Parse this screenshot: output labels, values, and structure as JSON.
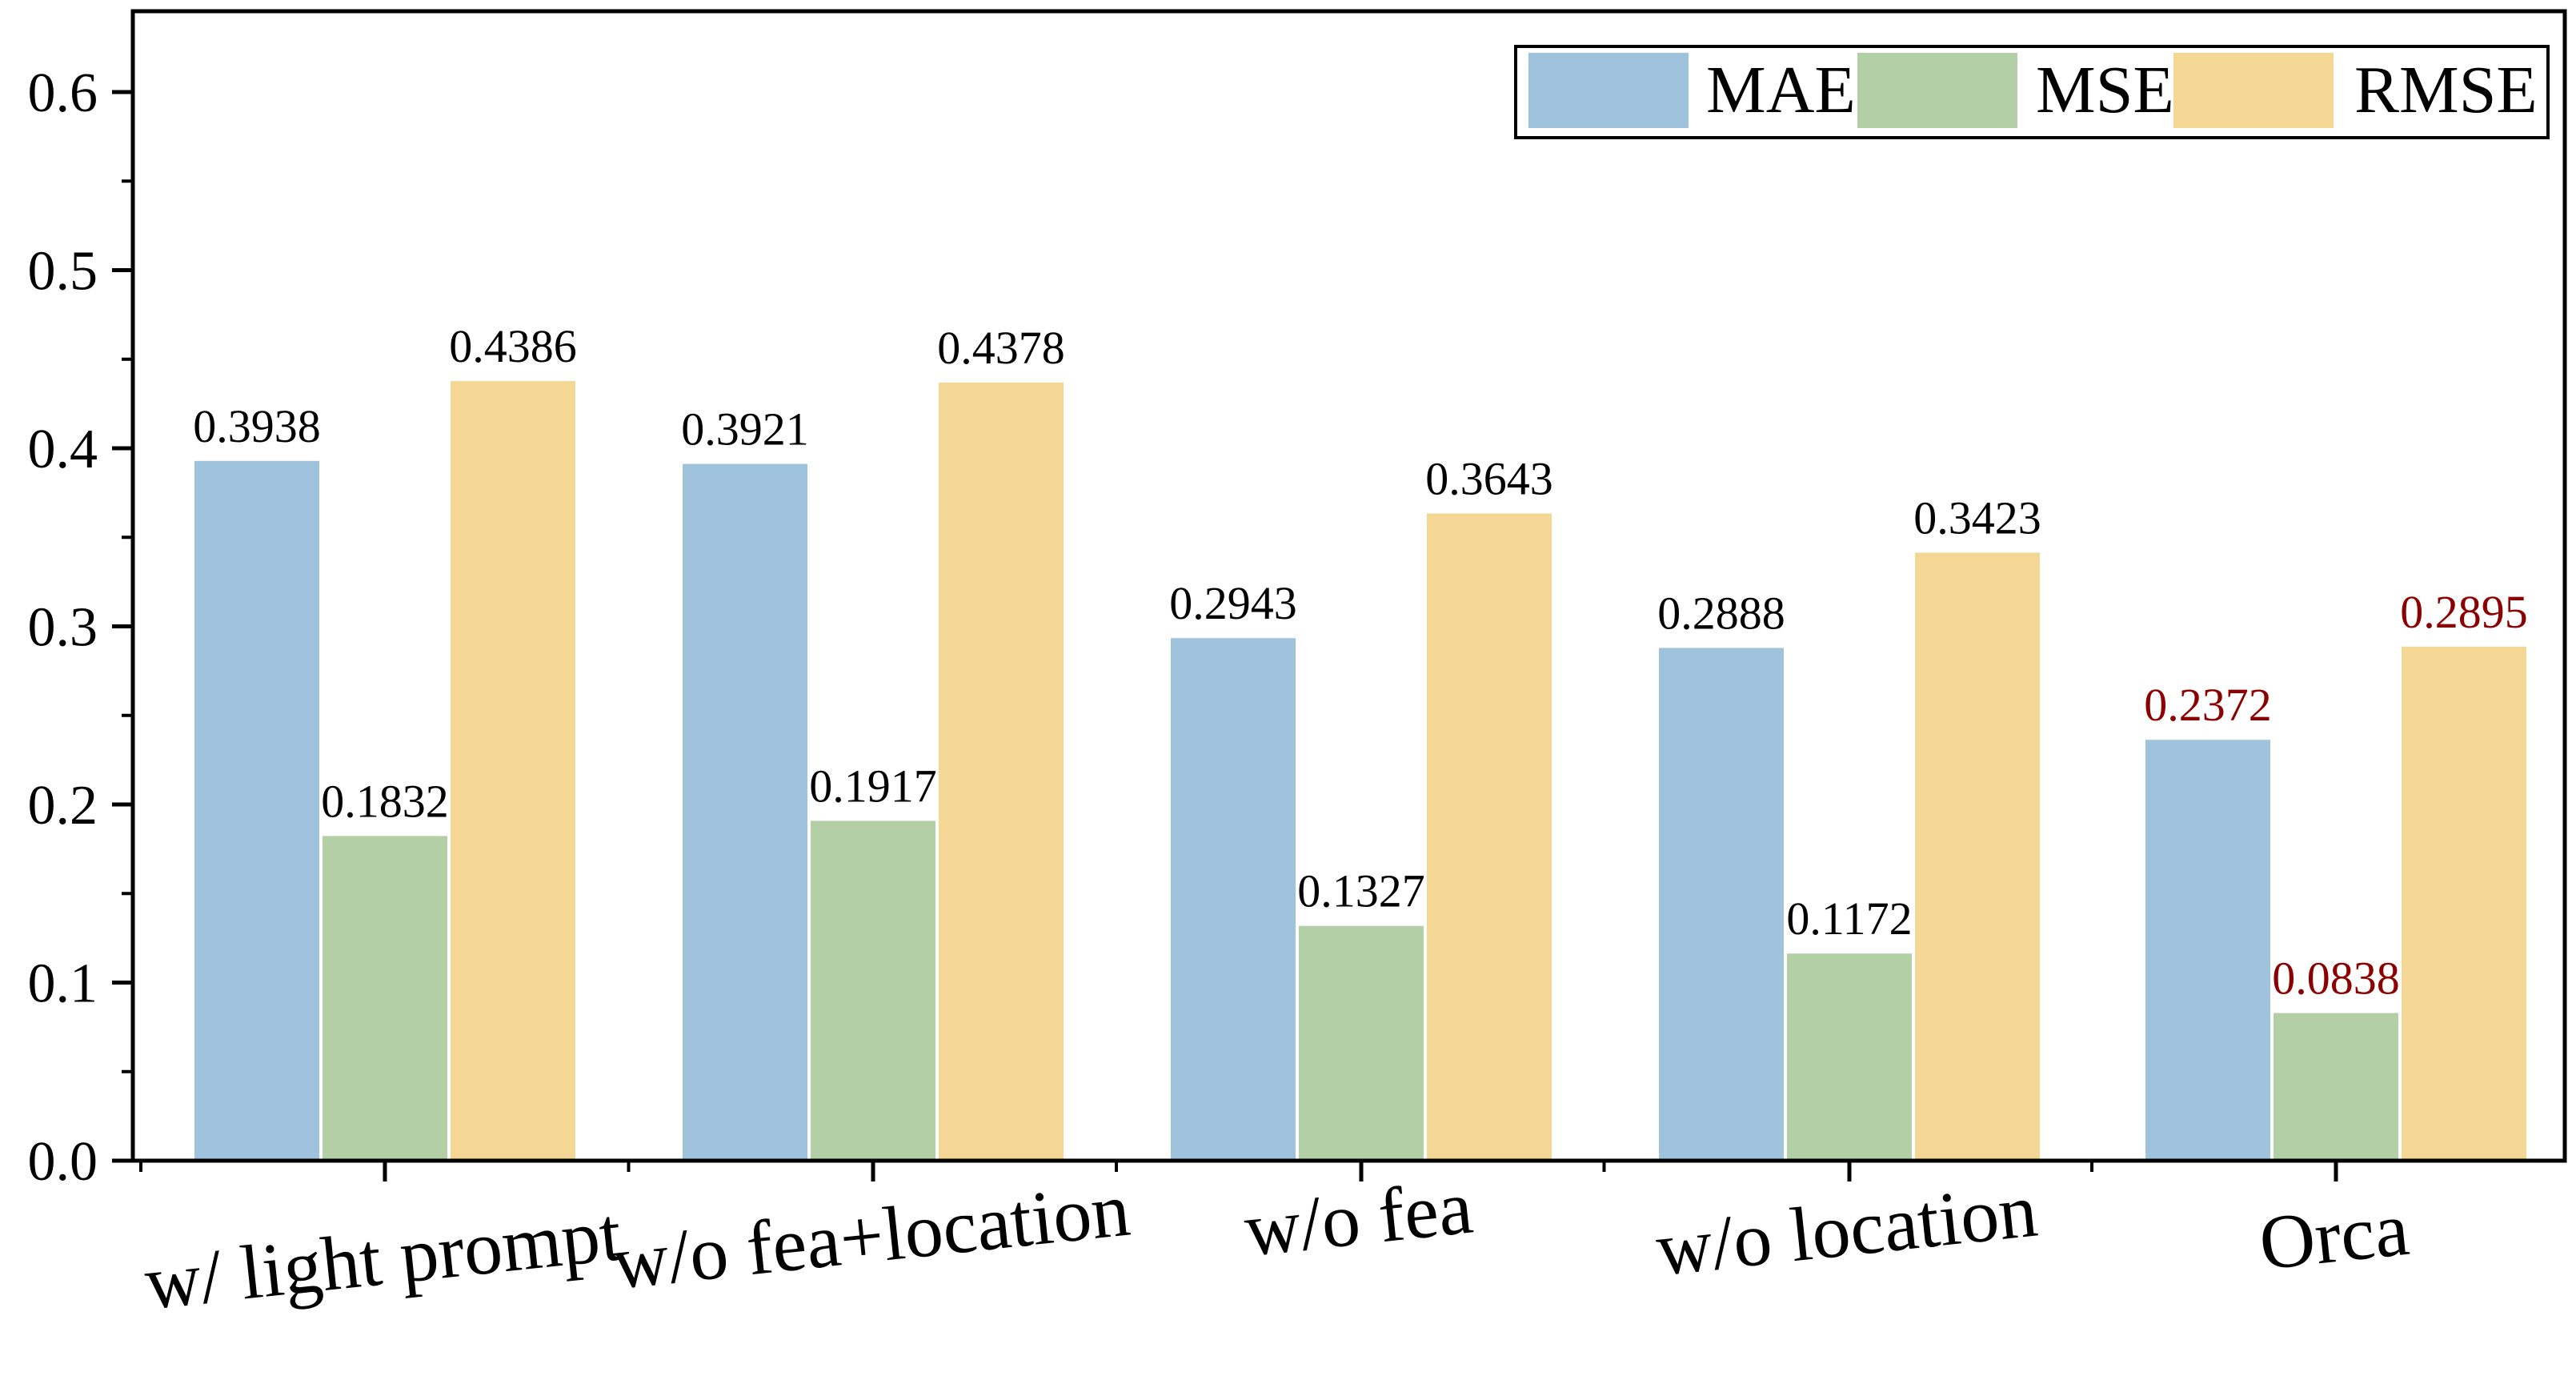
{
  "chart_data": {
    "type": "bar",
    "title": "",
    "xlabel": "",
    "ylabel": "",
    "ylim": [
      0,
      0.65
    ],
    "yticks": [
      "0.0",
      "0.1",
      "0.2",
      "0.3",
      "0.4",
      "0.5",
      "0.6"
    ],
    "grid": false,
    "legend_position": "top-right",
    "categories": [
      "w/ light prompt",
      "w/o fea+location",
      "w/o fea",
      "w/o location",
      "Orca"
    ],
    "series": [
      {
        "name": "MAE",
        "color": "#9fc3dd",
        "values": [
          0.3938,
          0.3921,
          0.2943,
          0.2888,
          0.2372
        ],
        "labels": [
          "0.3938",
          "0.3921",
          "0.2943",
          "0.2888",
          "0.2372"
        ]
      },
      {
        "name": "MSE",
        "color": "#b3cfa6",
        "values": [
          0.1832,
          0.1917,
          0.1327,
          0.1172,
          0.0838
        ],
        "labels": [
          "0.1832",
          "0.1917",
          "0.1327",
          "0.1172",
          "0.0838"
        ]
      },
      {
        "name": "RMSE",
        "color": "#f4d794",
        "values": [
          0.4386,
          0.4378,
          0.3643,
          0.3423,
          0.2895
        ],
        "labels": [
          "0.4386",
          "0.4378",
          "0.3643",
          "0.3423",
          "0.2895"
        ]
      }
    ],
    "highlight_category": "Orca",
    "label_color": "#000000",
    "highlight_label_color": "#8b0000"
  }
}
